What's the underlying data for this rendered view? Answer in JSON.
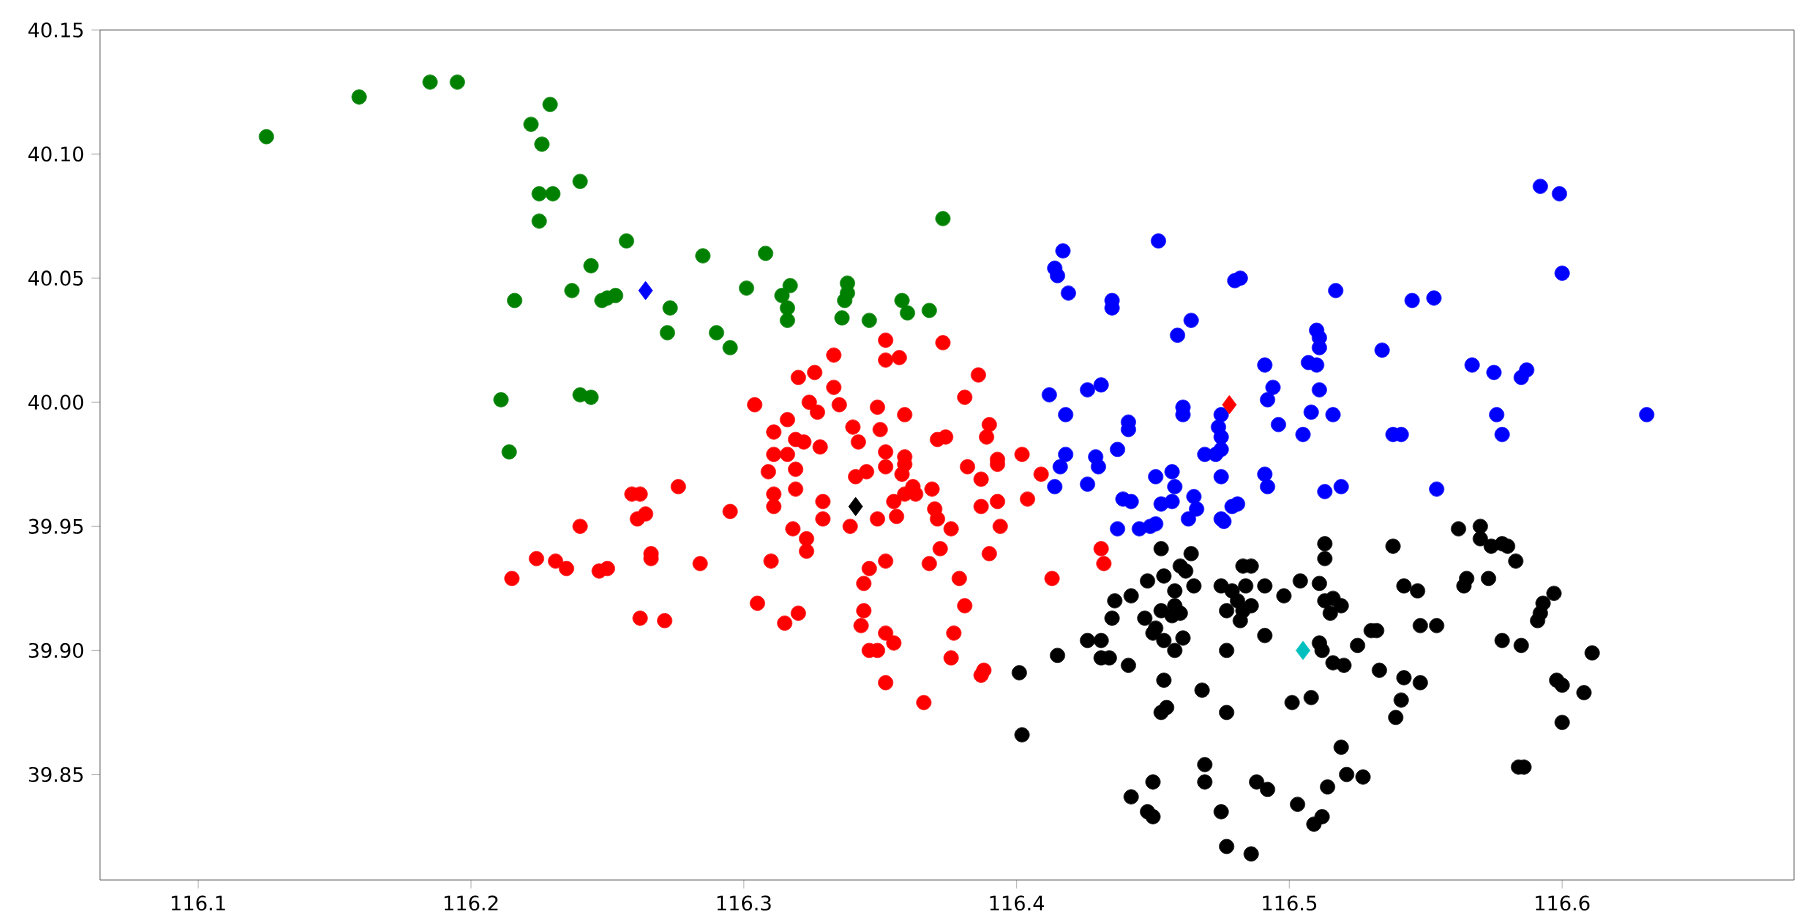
{
  "chart_data": {
    "type": "scatter",
    "xlim": [
      116.064,
      116.685
    ],
    "ylim": [
      39.8075,
      40.15
    ],
    "xticks": [
      116.1,
      116.2,
      116.3,
      116.4,
      116.5,
      116.6
    ],
    "yticks": [
      39.85,
      {
        "value": 39.9,
        "label": "39.90"
      },
      39.95,
      {
        "value": 40.0,
        "label": "40.00"
      },
      40.05,
      {
        "value": 40.1,
        "label": "40.10"
      },
      40.15
    ],
    "series": [
      {
        "color": "#008000",
        "marker": "circle",
        "x": [
          116.125,
          116.159,
          116.185,
          116.195,
          116.229,
          116.222,
          116.226,
          116.24,
          116.225,
          116.23,
          116.225,
          116.257,
          116.244,
          116.237,
          116.216,
          116.248,
          116.25,
          116.253,
          116.273,
          116.272,
          116.211,
          116.24,
          116.244,
          116.214,
          116.285,
          116.308,
          116.301,
          116.317,
          116.314,
          116.316,
          116.316,
          116.338,
          116.338,
          116.337,
          116.336,
          116.346,
          116.358,
          116.36,
          116.368,
          116.29,
          116.295,
          116.373
        ],
        "values": [
          40.107,
          40.123,
          40.129,
          40.129,
          40.12,
          40.112,
          40.104,
          40.089,
          40.084,
          40.084,
          40.073,
          40.065,
          40.055,
          40.045,
          40.041,
          40.041,
          40.042,
          40.043,
          40.038,
          40.028,
          40.001,
          40.003,
          40.002,
          39.98,
          40.059,
          40.06,
          40.046,
          40.047,
          40.043,
          40.038,
          40.033,
          40.048,
          40.044,
          40.041,
          40.034,
          40.033,
          40.041,
          40.036,
          40.037,
          40.028,
          40.022,
          40.074
        ]
      },
      {
        "color": "#ff0000",
        "marker": "circle",
        "x": [
          116.215,
          116.224,
          116.231,
          116.235,
          116.24,
          116.247,
          116.25,
          116.259,
          116.262,
          116.261,
          116.264,
          116.266,
          116.266,
          116.262,
          116.271,
          116.276,
          116.295,
          116.284,
          116.305,
          116.315,
          116.32,
          116.333,
          116.352,
          116.352,
          116.357,
          116.373,
          116.386,
          116.381,
          116.326,
          116.32,
          116.333,
          116.304,
          116.324,
          116.327,
          116.335,
          116.349,
          116.359,
          116.316,
          116.311,
          116.34,
          116.35,
          116.319,
          116.322,
          116.342,
          116.39,
          116.389,
          116.371,
          116.374,
          116.328,
          116.311,
          116.316,
          116.352,
          116.402,
          116.393,
          116.359,
          116.309,
          116.319,
          116.311,
          116.311,
          116.319,
          116.318,
          116.323,
          116.323,
          116.329,
          116.329,
          116.31,
          116.341,
          116.345,
          116.339,
          116.349,
          116.352,
          116.359,
          116.358,
          116.355,
          116.356,
          116.362,
          116.363,
          116.359,
          116.369,
          116.37,
          116.371,
          116.376,
          116.372,
          116.368,
          116.352,
          116.346,
          116.344,
          116.344,
          116.343,
          116.352,
          116.355,
          116.346,
          116.349,
          116.352,
          116.366,
          116.376,
          116.377,
          116.381,
          116.379,
          116.388,
          116.387,
          116.39,
          116.394,
          116.387,
          116.393,
          116.387,
          116.382,
          116.393,
          116.409,
          116.404,
          116.413,
          116.431,
          116.432
        ],
        "values": [
          39.929,
          39.937,
          39.936,
          39.933,
          39.95,
          39.932,
          39.933,
          39.963,
          39.963,
          39.953,
          39.955,
          39.939,
          39.937,
          39.913,
          39.912,
          39.966,
          39.956,
          39.935,
          39.919,
          39.911,
          39.915,
          40.019,
          40.025,
          40.017,
          40.018,
          40.024,
          40.011,
          40.002,
          40.012,
          40.01,
          40.006,
          39.999,
          40.0,
          39.996,
          39.999,
          39.998,
          39.995,
          39.993,
          39.988,
          39.99,
          39.989,
          39.985,
          39.984,
          39.984,
          39.991,
          39.986,
          39.985,
          39.986,
          39.982,
          39.979,
          39.979,
          39.98,
          39.979,
          39.977,
          39.978,
          39.972,
          39.973,
          39.963,
          39.958,
          39.965,
          39.949,
          39.945,
          39.94,
          39.96,
          39.953,
          39.936,
          39.97,
          39.972,
          39.95,
          39.953,
          39.974,
          39.975,
          39.971,
          39.96,
          39.954,
          39.966,
          39.963,
          39.963,
          39.965,
          39.957,
          39.953,
          39.949,
          39.941,
          39.935,
          39.936,
          39.933,
          39.927,
          39.916,
          39.91,
          39.907,
          39.903,
          39.9,
          39.9,
          39.887,
          39.879,
          39.897,
          39.907,
          39.918,
          39.929,
          39.892,
          39.89,
          39.939,
          39.95,
          39.958,
          39.96,
          39.969,
          39.974,
          39.975,
          39.971,
          39.961,
          39.929,
          39.941,
          39.935
        ]
      },
      {
        "color": "#0000ff",
        "marker": "circle",
        "x": [
          116.417,
          116.414,
          116.415,
          116.419,
          116.435,
          116.435,
          116.452,
          116.464,
          116.459,
          116.48,
          116.412,
          116.426,
          116.431,
          116.418,
          116.441,
          116.441,
          116.461,
          116.461,
          116.437,
          116.418,
          116.429,
          116.474,
          116.475,
          116.469,
          116.473,
          116.592,
          116.599,
          116.6,
          116.482,
          116.517,
          116.545,
          116.553,
          116.51,
          116.511,
          116.511,
          116.534,
          116.491,
          116.507,
          116.51,
          116.567,
          116.575,
          116.587,
          116.585,
          116.494,
          116.492,
          116.511,
          116.508,
          116.516,
          116.496,
          116.505,
          116.538,
          116.541,
          116.576,
          116.578,
          116.631,
          116.475,
          116.475,
          116.416,
          116.414,
          116.426,
          116.43,
          116.439,
          116.442,
          116.451,
          116.457,
          116.458,
          116.453,
          116.457,
          116.465,
          116.437,
          116.445,
          116.449,
          116.451,
          116.463,
          116.466,
          116.475,
          116.479,
          116.475,
          116.491,
          116.492,
          116.513,
          116.519,
          116.554,
          116.481,
          116.476
        ],
        "values": [
          40.061,
          40.054,
          40.051,
          40.044,
          40.041,
          40.038,
          40.065,
          40.033,
          40.027,
          40.049,
          40.003,
          40.005,
          40.007,
          39.995,
          39.992,
          39.989,
          39.998,
          39.995,
          39.981,
          39.979,
          39.978,
          39.99,
          39.986,
          39.979,
          39.979,
          40.087,
          40.084,
          40.052,
          40.05,
          40.045,
          40.041,
          40.042,
          40.029,
          40.026,
          40.022,
          40.021,
          40.015,
          40.016,
          40.015,
          40.015,
          40.012,
          40.013,
          40.01,
          40.006,
          40.001,
          40.005,
          39.996,
          39.995,
          39.991,
          39.987,
          39.987,
          39.987,
          39.995,
          39.987,
          39.995,
          39.995,
          39.981,
          39.974,
          39.966,
          39.967,
          39.974,
          39.961,
          39.96,
          39.97,
          39.972,
          39.966,
          39.959,
          39.96,
          39.962,
          39.949,
          39.949,
          39.95,
          39.951,
          39.953,
          39.957,
          39.953,
          39.958,
          39.97,
          39.971,
          39.966,
          39.964,
          39.966,
          39.965,
          39.959,
          39.952
        ]
      },
      {
        "color": "#000000",
        "marker": "circle",
        "x": [
          116.453,
          116.464,
          116.46,
          116.462,
          116.454,
          116.448,
          116.465,
          116.458,
          116.442,
          116.436,
          116.458,
          116.453,
          116.457,
          116.46,
          116.447,
          116.435,
          116.451,
          116.45,
          116.461,
          116.454,
          116.426,
          116.431,
          116.458,
          116.415,
          116.431,
          116.434,
          116.441,
          116.401,
          116.454,
          116.468,
          116.453,
          116.455,
          116.402,
          116.469,
          116.469,
          116.45,
          116.442,
          116.448,
          116.45,
          116.475,
          116.477,
          116.475,
          116.477,
          116.477,
          116.477,
          116.486,
          116.483,
          116.479,
          116.484,
          116.491,
          116.481,
          116.483,
          116.482,
          116.486,
          116.491,
          116.498,
          116.504,
          116.511,
          116.513,
          116.513,
          116.513,
          116.516,
          116.519,
          116.515,
          116.511,
          116.512,
          116.516,
          116.52,
          116.525,
          116.53,
          116.532,
          116.533,
          116.501,
          116.508,
          116.519,
          116.514,
          116.521,
          116.527,
          116.488,
          116.492,
          116.503,
          116.512,
          116.509,
          116.486,
          116.538,
          116.542,
          116.547,
          116.548,
          116.554,
          116.542,
          116.548,
          116.541,
          116.539,
          116.562,
          116.57,
          116.57,
          116.574,
          116.578,
          116.58,
          116.583,
          116.573,
          116.565,
          116.564,
          116.578,
          116.585,
          116.597,
          116.593,
          116.592,
          116.591,
          116.611,
          116.598,
          116.6,
          116.608,
          116.6,
          116.584,
          116.586
        ],
        "values": [
          39.941,
          39.939,
          39.934,
          39.932,
          39.93,
          39.928,
          39.926,
          39.924,
          39.922,
          39.92,
          39.918,
          39.916,
          39.914,
          39.915,
          39.913,
          39.913,
          39.909,
          39.907,
          39.905,
          39.904,
          39.904,
          39.904,
          39.9,
          39.898,
          39.897,
          39.897,
          39.894,
          39.891,
          39.888,
          39.884,
          39.875,
          39.877,
          39.866,
          39.854,
          39.847,
          39.847,
          39.841,
          39.835,
          39.833,
          39.835,
          39.821,
          39.926,
          39.916,
          39.9,
          39.875,
          39.934,
          39.934,
          39.924,
          39.926,
          39.926,
          39.92,
          39.916,
          39.912,
          39.918,
          39.906,
          39.922,
          39.928,
          39.927,
          39.943,
          39.937,
          39.92,
          39.921,
          39.918,
          39.915,
          39.903,
          39.9,
          39.895,
          39.894,
          39.902,
          39.908,
          39.908,
          39.892,
          39.879,
          39.881,
          39.861,
          39.845,
          39.85,
          39.849,
          39.847,
          39.844,
          39.838,
          39.833,
          39.83,
          39.818,
          39.942,
          39.926,
          39.924,
          39.91,
          39.91,
          39.889,
          39.887,
          39.88,
          39.873,
          39.949,
          39.95,
          39.945,
          39.942,
          39.943,
          39.942,
          39.936,
          39.929,
          39.929,
          39.926,
          39.904,
          39.902,
          39.923,
          39.919,
          39.915,
          39.912,
          39.899,
          39.888,
          39.886,
          39.883,
          39.871,
          39.853,
          39.853
        ]
      },
      {
        "marker": "diamond",
        "colors": [
          "#0000ff",
          "#000000",
          "#ff0000",
          "#00bfbf"
        ],
        "x": [
          116.264,
          116.341,
          116.478,
          116.505
        ],
        "values": [
          40.045,
          39.958,
          39.999,
          39.9
        ]
      }
    ]
  }
}
